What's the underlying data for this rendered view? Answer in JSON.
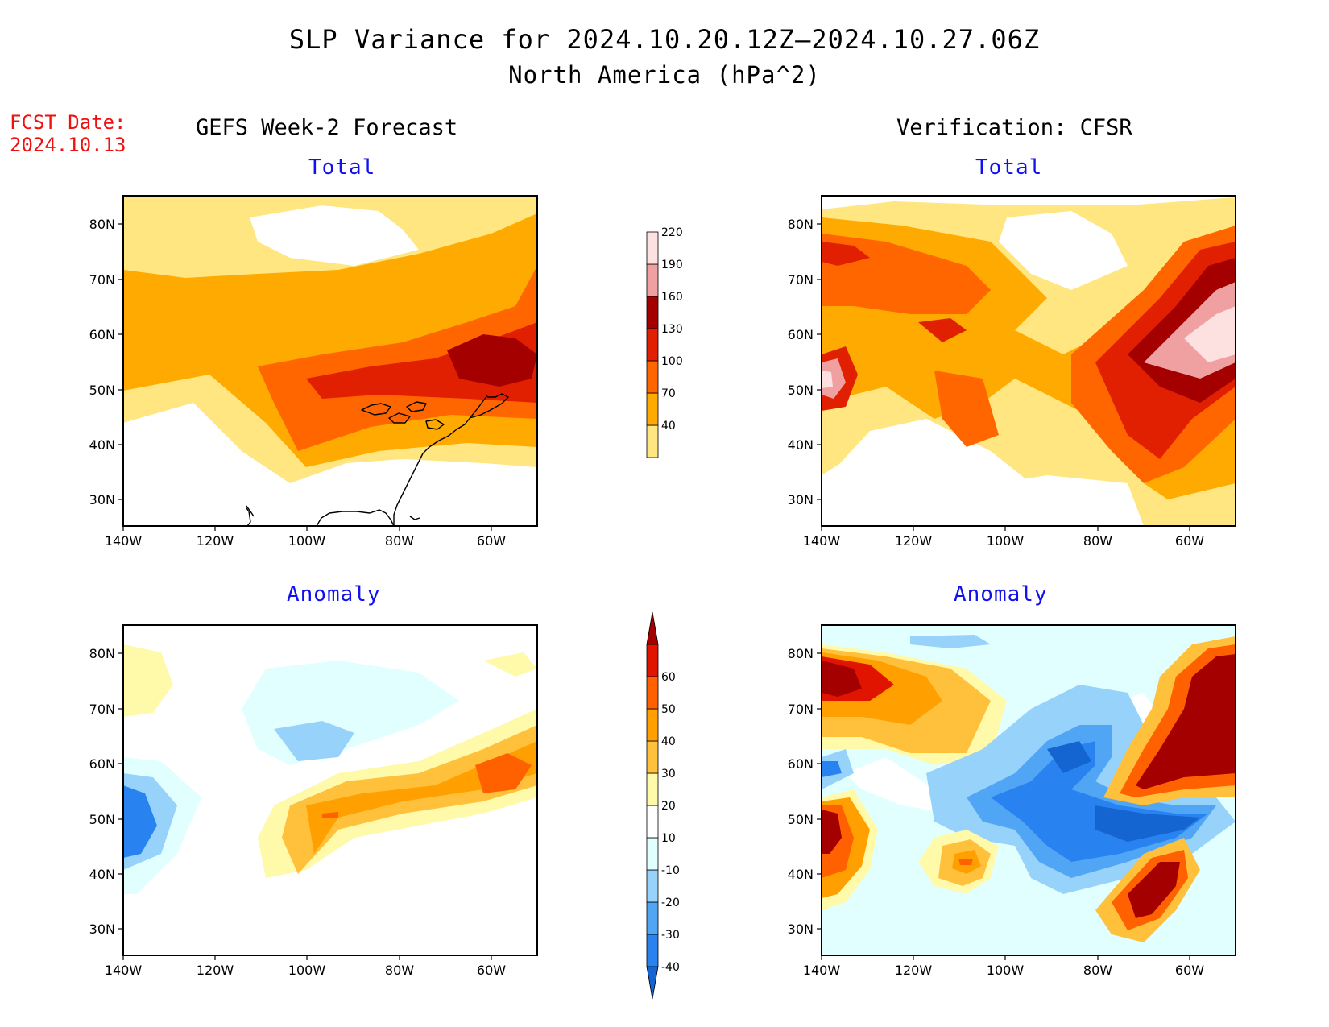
{
  "title": {
    "line1": "SLP Variance for 2024.10.20.12Z–2024.10.27.06Z",
    "line2": "North America (hPa^2)"
  },
  "forecast_date": {
    "label": "FCST Date:",
    "value": "2024.10.13"
  },
  "columns": {
    "left": "GEFS Week-2 Forecast",
    "right": "Verification: CFSR"
  },
  "panels": {
    "top_left": "Total",
    "top_right": "Total",
    "bottom_left": "Anomaly",
    "bottom_right": "Anomaly"
  },
  "axes": {
    "lat_labels": [
      "80N",
      "70N",
      "60N",
      "50N",
      "40N",
      "30N"
    ],
    "lon_labels": [
      "140W",
      "120W",
      "100W",
      "80W",
      "60W"
    ]
  },
  "colorbars": {
    "total": {
      "ticks": [
        "40",
        "70",
        "100",
        "130",
        "160",
        "190",
        "220"
      ],
      "colors": [
        "#ffe680",
        "#ffaa00",
        "#ff6600",
        "#e02000",
        "#a50000",
        "#f0a0a0",
        "#fde0e0"
      ]
    },
    "anomaly": {
      "ticks": [
        "-40",
        "-30",
        "-20",
        "-10",
        "10",
        "20",
        "30",
        "40",
        "50",
        "60"
      ],
      "colors": [
        "#1464d2",
        "#2882f0",
        "#50a5f5",
        "#96d2fa",
        "#e1ffff",
        "#ffffff",
        "#fffaaa",
        "#ffc03c",
        "#ffa000",
        "#ff6000",
        "#e11400",
        "#a50000"
      ]
    }
  },
  "colors": {
    "fcst_date": "#ee1111",
    "panel_title": "#1111ee"
  }
}
